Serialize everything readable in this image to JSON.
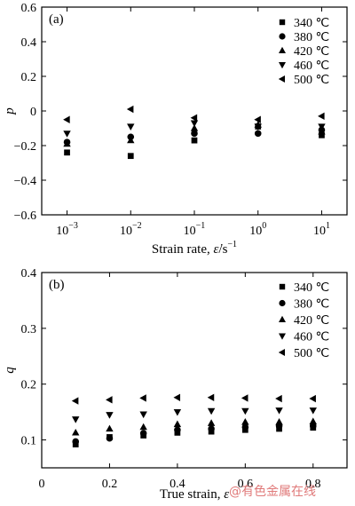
{
  "chart_data": [
    {
      "type": "scatter",
      "panel_label": "(a)",
      "title": "",
      "ylabel": "p",
      "xlabel_text": "Strain rate, ",
      "xlabel_symbol": "ε̇",
      "xlabel_unit": "/s",
      "xlabel_unit_sup": "−1",
      "x_scale": "log",
      "xlim": [
        0.0004,
        25
      ],
      "ylim": [
        -0.6,
        0.6
      ],
      "y_ticks": [
        -0.6,
        -0.4,
        -0.2,
        0,
        0.2,
        0.4,
        0.6
      ],
      "y_tick_labels": [
        "−0.6",
        "−0.4",
        "−0.2",
        "0",
        "0.2",
        "0.4",
        "0.6"
      ],
      "x_ticks": [
        0.001,
        0.01,
        0.1,
        1,
        10
      ],
      "x_tick_labels": [
        {
          "base": "10",
          "exp": "−3"
        },
        {
          "base": "10",
          "exp": "−2"
        },
        {
          "base": "10",
          "exp": "−1"
        },
        {
          "base": "10",
          "exp": "0"
        },
        {
          "base": "10",
          "exp": "1"
        }
      ],
      "legend_position": "top-right",
      "grid": false,
      "series": [
        {
          "name": "340 ℃",
          "marker": "square",
          "x": [
            0.001,
            0.01,
            0.1,
            1,
            10
          ],
          "y": [
            -0.24,
            -0.26,
            -0.17,
            -0.09,
            -0.14
          ]
        },
        {
          "name": "380 ℃",
          "marker": "circle",
          "x": [
            0.001,
            0.01,
            0.1,
            1,
            10
          ],
          "y": [
            -0.18,
            -0.15,
            -0.13,
            -0.13,
            -0.11
          ]
        },
        {
          "name": "420 ℃",
          "marker": "triangle-up",
          "x": [
            0.001,
            0.01,
            0.1,
            1,
            10
          ],
          "y": [
            -0.19,
            -0.17,
            -0.1,
            -0.08,
            -0.12
          ]
        },
        {
          "name": "460 ℃",
          "marker": "triangle-down",
          "x": [
            0.001,
            0.01,
            0.1,
            1,
            10
          ],
          "y": [
            -0.13,
            -0.09,
            -0.07,
            -0.09,
            -0.09
          ]
        },
        {
          "name": "500 ℃",
          "marker": "triangle-left",
          "x": [
            0.001,
            0.01,
            0.1,
            1,
            10
          ],
          "y": [
            -0.05,
            0.01,
            -0.04,
            -0.05,
            -0.03
          ]
        }
      ]
    },
    {
      "type": "scatter",
      "panel_label": "(b)",
      "title": "",
      "ylabel": "q",
      "xlabel_text": "True strain, ",
      "xlabel_symbol": "ε",
      "xlabel_unit": "",
      "xlabel_unit_sup": "",
      "x_scale": "linear",
      "xlim": [
        0,
        0.9
      ],
      "ylim": [
        0.05,
        0.4
      ],
      "y_ticks": [
        0.1,
        0.2,
        0.3,
        0.4
      ],
      "y_tick_labels": [
        "0.1",
        "0.2",
        "0.3",
        "0.4"
      ],
      "x_ticks": [
        0,
        0.2,
        0.4,
        0.6,
        0.8
      ],
      "x_tick_labels": [
        "0",
        "0.2",
        "0.4",
        "0.6",
        "0.8"
      ],
      "legend_position": "top-right",
      "grid": false,
      "series": [
        {
          "name": "340 ℃",
          "marker": "square",
          "x": [
            0.1,
            0.2,
            0.3,
            0.4,
            0.5,
            0.6,
            0.7,
            0.8
          ],
          "y": [
            0.092,
            0.105,
            0.108,
            0.113,
            0.115,
            0.118,
            0.12,
            0.122
          ]
        },
        {
          "name": "380 ℃",
          "marker": "circle",
          "x": [
            0.1,
            0.2,
            0.3,
            0.4,
            0.5,
            0.6,
            0.7,
            0.8
          ],
          "y": [
            0.097,
            0.103,
            0.112,
            0.118,
            0.12,
            0.123,
            0.125,
            0.125
          ]
        },
        {
          "name": "420 ℃",
          "marker": "triangle-up",
          "x": [
            0.1,
            0.2,
            0.3,
            0.4,
            0.5,
            0.6,
            0.7,
            0.8
          ],
          "y": [
            0.113,
            0.12,
            0.123,
            0.128,
            0.13,
            0.132,
            0.132,
            0.133
          ]
        },
        {
          "name": "460 ℃",
          "marker": "triangle-down",
          "x": [
            0.1,
            0.2,
            0.3,
            0.4,
            0.5,
            0.6,
            0.7,
            0.8
          ],
          "y": [
            0.137,
            0.145,
            0.146,
            0.15,
            0.152,
            0.152,
            0.153,
            0.153
          ]
        },
        {
          "name": "500 ℃",
          "marker": "triangle-left",
          "x": [
            0.1,
            0.2,
            0.3,
            0.4,
            0.5,
            0.6,
            0.7,
            0.8
          ],
          "y": [
            0.17,
            0.172,
            0.175,
            0.176,
            0.176,
            0.175,
            0.174,
            0.174
          ]
        }
      ]
    }
  ],
  "watermark": "@有色金属在线"
}
